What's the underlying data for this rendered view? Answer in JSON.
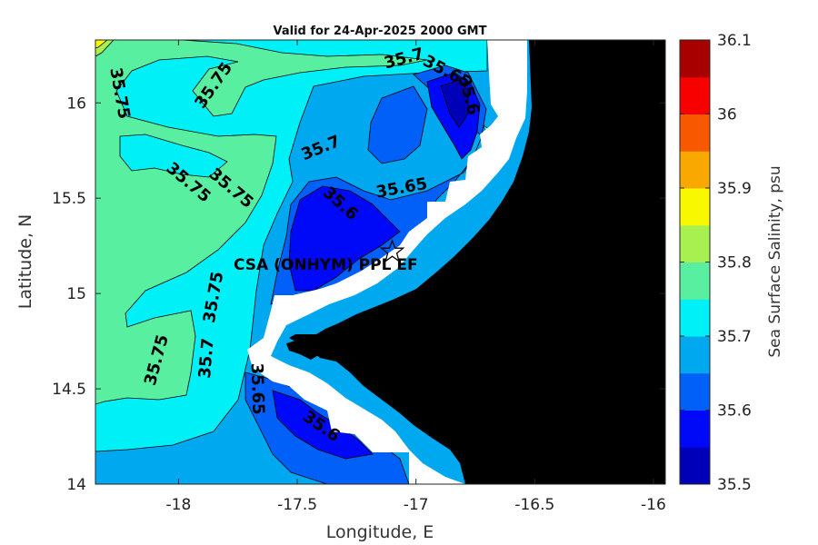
{
  "title": "Valid for 24-Apr-2025 2000 GMT",
  "map_data": {
    "type": "filled-contour",
    "variable": "Sea Surface Salinity",
    "xlabel": "Longitude, E",
    "ylabel": "Latitude, N",
    "x_ticks": [
      "-18",
      "-17.5",
      "-17",
      "-16.5",
      "-16"
    ],
    "x_tick_values": [
      -18,
      -17.5,
      -17,
      -16.5,
      -16
    ],
    "y_ticks": [
      "16",
      "15.5",
      "15",
      "14.5",
      "14"
    ],
    "y_tick_values": [
      16,
      15.5,
      15,
      14.5,
      14
    ],
    "xlim": [
      -18.35,
      -15.95
    ],
    "ylim": [
      14,
      16.33
    ],
    "site": {
      "name": "CSA (ONHYM) PPL EF",
      "lon": -17.1,
      "lat": 15.22
    },
    "contour_labels": [
      {
        "text": "35.75",
        "lon": -18.25,
        "lat": 16.05,
        "angle": 80
      },
      {
        "text": "35.75",
        "lon": -17.85,
        "lat": 16.09,
        "angle": -55
      },
      {
        "text": "35.75",
        "lon": -17.96,
        "lat": 15.58,
        "angle": 40
      },
      {
        "text": "35.75",
        "lon": -17.78,
        "lat": 15.55,
        "angle": 40
      },
      {
        "text": "35.7",
        "lon": -17.05,
        "lat": 16.23,
        "angle": -15
      },
      {
        "text": "35.65",
        "lon": -16.87,
        "lat": 16.16,
        "angle": 28
      },
      {
        "text": "35.6",
        "lon": -16.78,
        "lat": 16.04,
        "angle": 75
      },
      {
        "text": "35.7",
        "lon": -17.4,
        "lat": 15.76,
        "angle": -22
      },
      {
        "text": "35.65",
        "lon": -17.06,
        "lat": 15.55,
        "angle": -10
      },
      {
        "text": "35.6",
        "lon": -17.32,
        "lat": 15.47,
        "angle": 42
      },
      {
        "text": "35.75",
        "lon": -17.85,
        "lat": 14.98,
        "angle": -80
      },
      {
        "text": "35.75",
        "lon": -18.09,
        "lat": 14.65,
        "angle": -75
      },
      {
        "text": "35.7",
        "lon": -17.88,
        "lat": 14.66,
        "angle": -85
      },
      {
        "text": "35.65",
        "lon": -17.67,
        "lat": 14.5,
        "angle": 88
      },
      {
        "text": "35.6",
        "lon": -17.4,
        "lat": 14.3,
        "angle": 35
      }
    ]
  },
  "colorbar": {
    "label": "Sea Surface Salinity, psu",
    "tick_labels": [
      "36.1",
      "36",
      "35.9",
      "35.8",
      "35.7",
      "35.6",
      "35.5"
    ],
    "tick_values": [
      36.1,
      36.0,
      35.9,
      35.8,
      35.7,
      35.6,
      35.5
    ],
    "range": [
      35.5,
      36.1
    ],
    "levels": [
      35.5,
      35.55,
      35.6,
      35.65,
      35.7,
      35.75,
      35.8,
      35.85,
      35.9,
      35.95,
      36.0,
      36.05,
      36.1
    ],
    "colors": [
      "#0000b8",
      "#0008f8",
      "#0060f8",
      "#00a8f0",
      "#00f0f8",
      "#58f0a0",
      "#a8f050",
      "#f8f800",
      "#f8a800",
      "#f85800",
      "#f80000",
      "#a80000"
    ]
  },
  "colors": {
    "land": "#000000",
    "nodata": "#ffffff",
    "c3565": "#00a8f0",
    "c357": "#00f0f8",
    "c3575": "#58f0a0",
    "c356": "#0060f8",
    "c3555": "#0008f8",
    "c358": "#a8f050",
    "c3585": "#f8f800"
  }
}
